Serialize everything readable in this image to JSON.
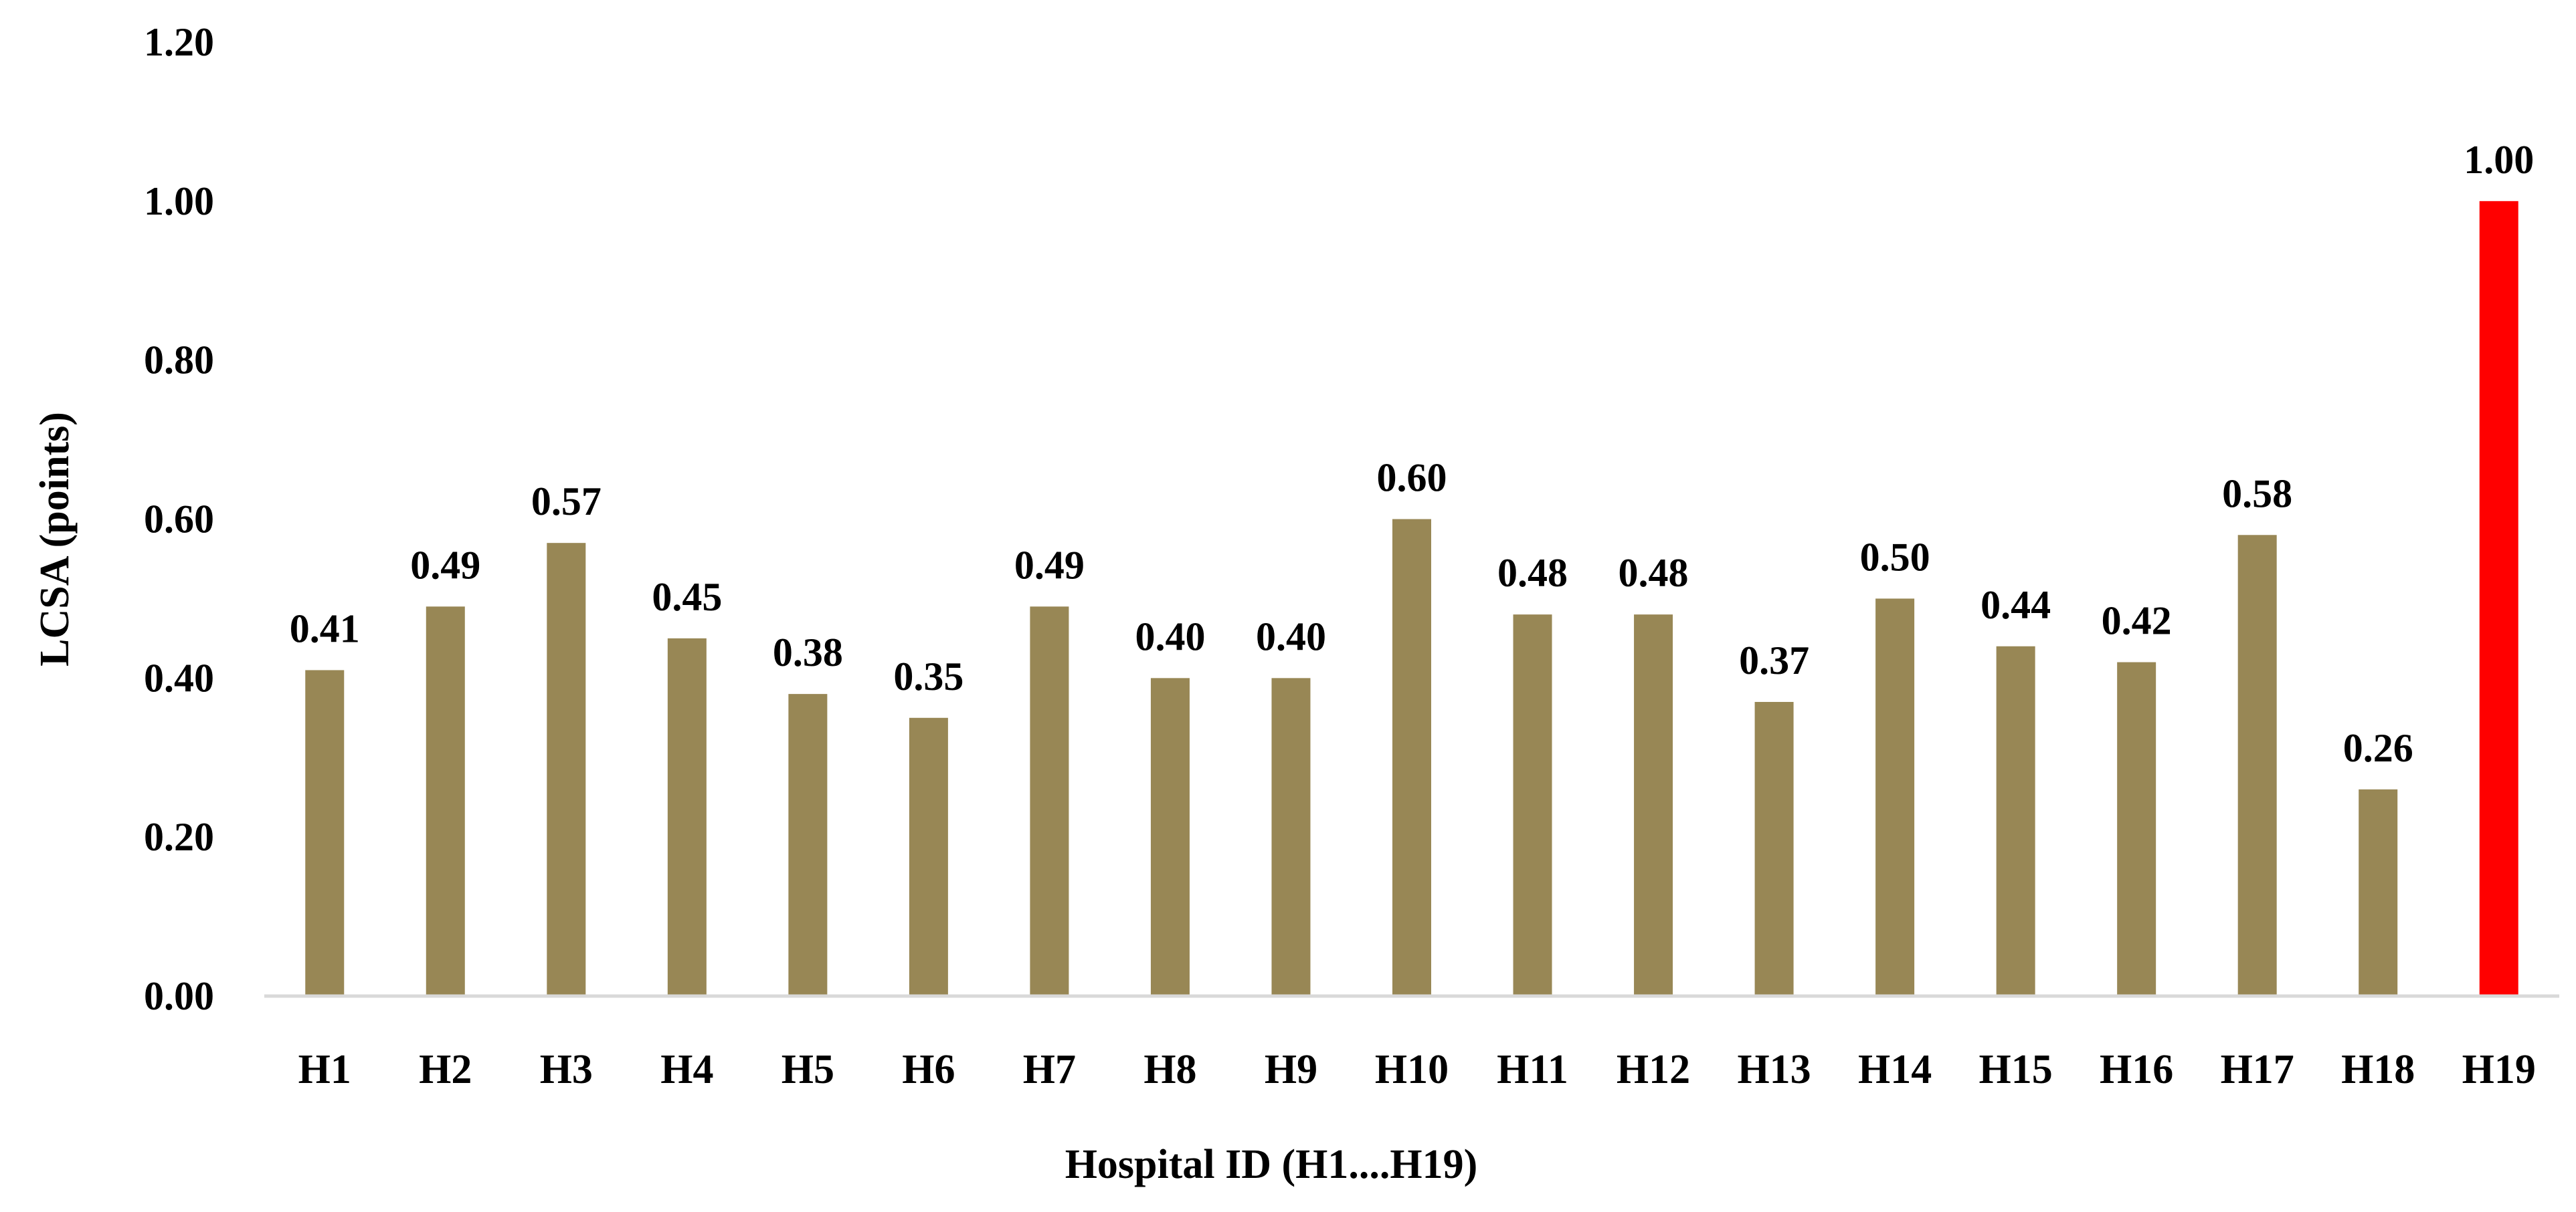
{
  "chart_data": {
    "type": "bar",
    "title": "",
    "xlabel": "Hospital ID (H1....H19)",
    "ylabel": "LCSA (points)",
    "ylim": [
      0,
      1.2
    ],
    "yticks": [
      "0.00",
      "0.20",
      "0.40",
      "0.60",
      "0.80",
      "1.00",
      "1.20"
    ],
    "categories": [
      "H1",
      "H2",
      "H3",
      "H4",
      "H5",
      "H6",
      "H7",
      "H8",
      "H9",
      "H10",
      "H11",
      "H12",
      "H13",
      "H14",
      "H15",
      "H16",
      "H17",
      "H18",
      "H19"
    ],
    "values": [
      0.41,
      0.49,
      0.57,
      0.45,
      0.38,
      0.35,
      0.49,
      0.4,
      0.4,
      0.6,
      0.48,
      0.48,
      0.37,
      0.5,
      0.44,
      0.42,
      0.58,
      0.26,
      1.0
    ],
    "value_labels": [
      "0.41",
      "0.49",
      "0.57",
      "0.45",
      "0.38",
      "0.35",
      "0.49",
      "0.40",
      "0.40",
      "0.60",
      "0.48",
      "0.48",
      "0.37",
      "0.50",
      "0.44",
      "0.42",
      "0.58",
      "0.26",
      "1.00"
    ],
    "grid": false,
    "legend": "none",
    "colors": {
      "bar": "#988755",
      "highlight": "#ff0000",
      "axis": "#d9d9d9"
    },
    "highlight_category": "H19"
  }
}
